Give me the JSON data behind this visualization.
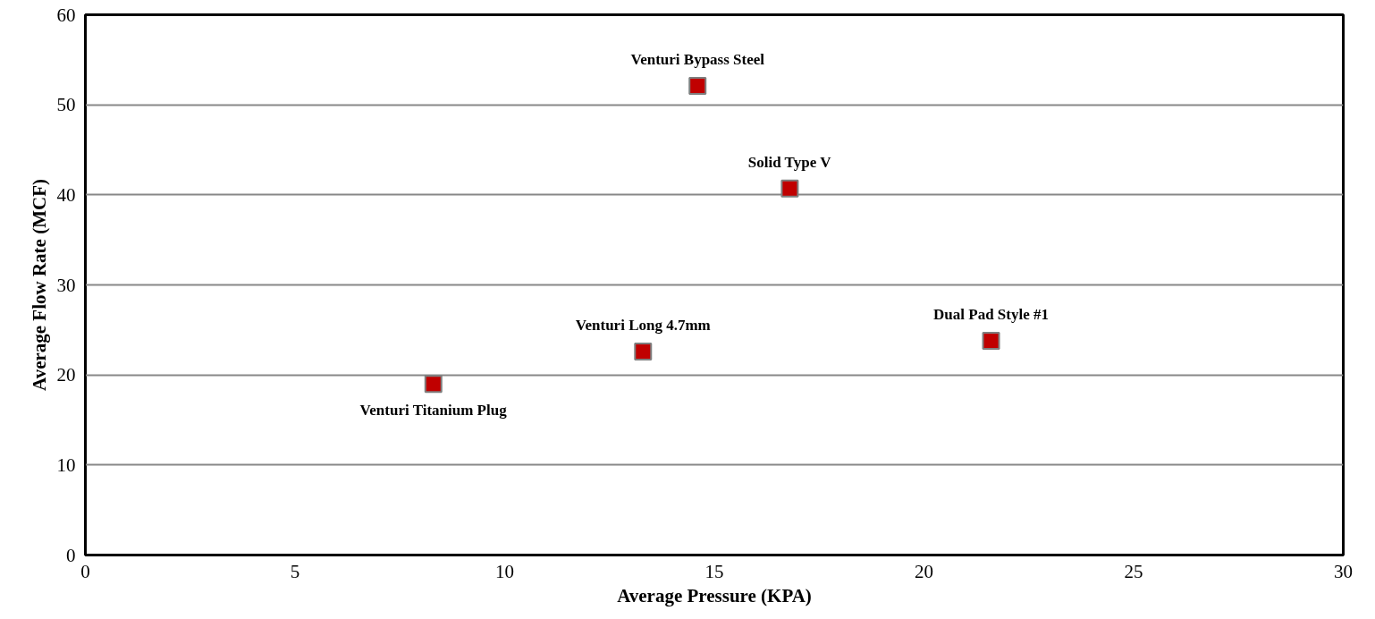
{
  "chart_data": {
    "type": "scatter",
    "xlabel": "Average Pressure (KPA)",
    "ylabel": "Average Flow Rate (MCF)",
    "x": [
      8.3,
      13.3,
      14.6,
      16.8,
      21.6
    ],
    "series": [
      {
        "color": "#c00000",
        "values": [
          19.0,
          22.6,
          52.1,
          40.7,
          23.8
        ]
      }
    ],
    "annotations": [
      {
        "text": "Venturi Titanium Plug",
        "x": 8.3,
        "y": 19.0
      },
      {
        "text": "Venturi Long 4.7mm",
        "x": 13.3,
        "y": 22.6
      },
      {
        "text": "Venturi Bypass Steel",
        "x": 14.6,
        "y": 52.1
      },
      {
        "text": "Solid Type V",
        "x": 16.8,
        "y": 40.7
      },
      {
        "text": "Dual Pad Style #1",
        "x": 21.6,
        "y": 23.8
      }
    ],
    "xlim": [
      0,
      30
    ],
    "ylim": [
      0,
      60
    ],
    "xticks": [
      0,
      5,
      10,
      15,
      20,
      25,
      30
    ],
    "yticks": [
      0,
      10,
      20,
      30,
      40,
      50,
      60
    ],
    "grid": "y",
    "marker": "square"
  }
}
